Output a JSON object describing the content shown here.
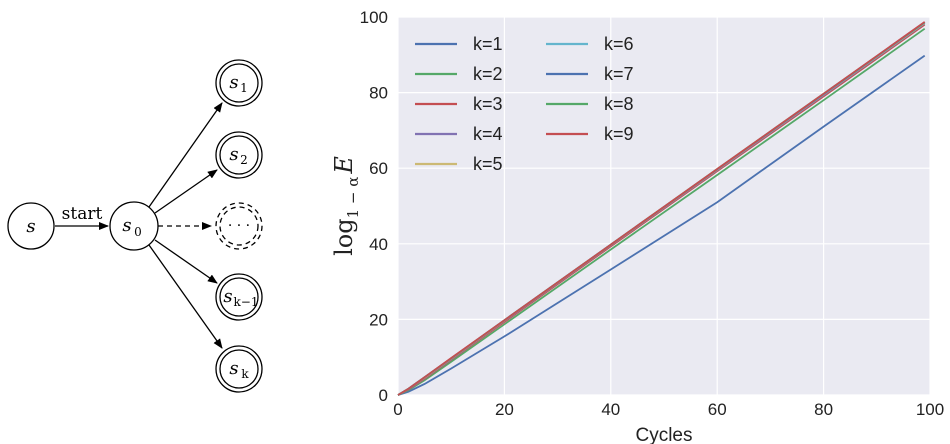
{
  "diagram": {
    "nodes": {
      "s": {
        "label": "s"
      },
      "s0": {
        "label": "s",
        "sub": "0"
      },
      "s1": {
        "label": "s",
        "sub": "1"
      },
      "s2": {
        "label": "s",
        "sub": "2"
      },
      "dots": {
        "label": "· · ·"
      },
      "sk1": {
        "label": "s",
        "sub": "k−1"
      },
      "sk": {
        "label": "s",
        "sub": "k"
      }
    },
    "edge_label": "start"
  },
  "chart_data": {
    "type": "line",
    "xlabel": "Cycles",
    "ylabel": "log",
    "ylabel_sub": "1 − α",
    "ylabel_var": "E",
    "xlim": [
      0,
      100
    ],
    "ylim": [
      0,
      100
    ],
    "xticks": [
      "0",
      "20",
      "40",
      "60",
      "80",
      "100"
    ],
    "yticks": [
      "0",
      "20",
      "40",
      "60",
      "80",
      "100"
    ],
    "grid": true,
    "legend_position": "top-left",
    "series": [
      {
        "name": "k=1",
        "color": "#4C72B0",
        "x": [
          0,
          2,
          5,
          10,
          20,
          40,
          60,
          80,
          99
        ],
        "y": [
          0,
          0.9,
          2.9,
          7.0,
          15.5,
          33.2,
          51.0,
          71.0,
          89.8
        ]
      },
      {
        "name": "k=2",
        "color": "#55A868",
        "x": [
          0,
          2,
          5,
          10,
          20,
          40,
          60,
          80,
          99
        ],
        "y": [
          0,
          1.3,
          3.9,
          8.8,
          18.7,
          38.5,
          58.2,
          78.0,
          96.9
        ]
      },
      {
        "name": "k=3",
        "color": "#C44E52",
        "x": [
          0,
          2,
          5,
          10,
          20,
          40,
          60,
          80,
          99
        ],
        "y": [
          0,
          1.5,
          4.3,
          9.3,
          19.3,
          39.3,
          59.2,
          79.0,
          98.0
        ]
      },
      {
        "name": "k=4",
        "color": "#8172B2",
        "x": [
          0,
          2,
          5,
          10,
          20,
          40,
          60,
          80,
          99
        ],
        "y": [
          0,
          1.6,
          4.5,
          9.5,
          19.6,
          39.6,
          59.5,
          79.3,
          98.3
        ]
      },
      {
        "name": "k=5",
        "color": "#CCB974",
        "x": [
          0,
          2,
          5,
          10,
          20,
          40,
          60,
          80,
          99
        ],
        "y": [
          0,
          1.7,
          4.6,
          9.6,
          19.7,
          39.7,
          59.6,
          79.5,
          98.4
        ]
      },
      {
        "name": "k=6",
        "color": "#64B5CD",
        "x": [
          0,
          2,
          5,
          10,
          20,
          40,
          60,
          80,
          99
        ],
        "y": [
          0,
          1.7,
          4.7,
          9.7,
          19.8,
          39.8,
          59.7,
          79.6,
          98.5
        ]
      },
      {
        "name": "k=7",
        "color": "#4C72B0",
        "x": [
          0,
          2,
          5,
          10,
          20,
          40,
          60,
          80,
          99
        ],
        "y": [
          0,
          1.7,
          4.7,
          9.7,
          19.8,
          39.8,
          59.7,
          79.6,
          98.6
        ]
      },
      {
        "name": "k=8",
        "color": "#55A868",
        "x": [
          0,
          2,
          5,
          10,
          20,
          40,
          60,
          80,
          99
        ],
        "y": [
          0,
          1.7,
          4.7,
          9.7,
          19.8,
          39.8,
          59.8,
          79.7,
          98.6
        ]
      },
      {
        "name": "k=9",
        "color": "#C44E52",
        "x": [
          0,
          2,
          5,
          10,
          20,
          40,
          60,
          80,
          99
        ],
        "y": [
          0,
          1.7,
          4.7,
          9.8,
          19.8,
          39.8,
          59.8,
          79.7,
          98.7
        ]
      }
    ]
  }
}
